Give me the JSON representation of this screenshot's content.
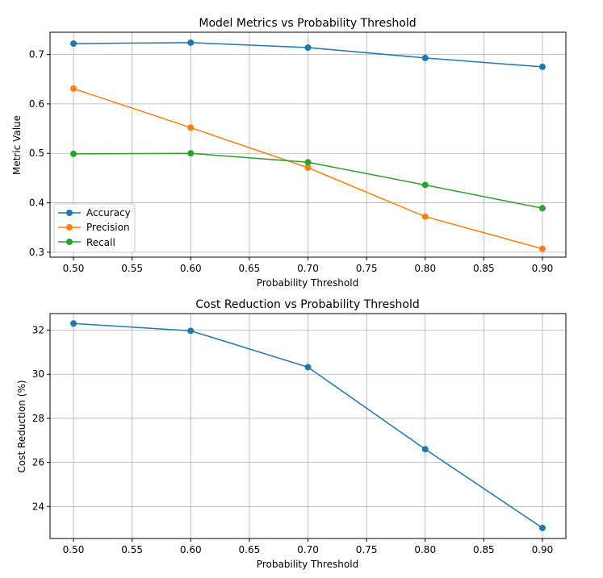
{
  "chart_data": [
    {
      "type": "line",
      "title": "Model Metrics vs Probability Threshold",
      "xlabel": "Probability Threshold",
      "ylabel": "Metric Value",
      "x": [
        0.5,
        0.6,
        0.7,
        0.8,
        0.9
      ],
      "xlim": [
        0.48,
        0.92
      ],
      "ylim": [
        0.29,
        0.745
      ],
      "xticks": [
        0.5,
        0.55,
        0.6,
        0.65,
        0.7,
        0.75,
        0.8,
        0.85,
        0.9
      ],
      "xtick_labels": [
        "0.50",
        "0.55",
        "0.60",
        "0.65",
        "0.70",
        "0.75",
        "0.80",
        "0.85",
        "0.90"
      ],
      "yticks": [
        0.3,
        0.4,
        0.5,
        0.6,
        0.7
      ],
      "ytick_labels": [
        "0.3",
        "0.4",
        "0.5",
        "0.6",
        "0.7"
      ],
      "grid": true,
      "legend": "lower-left",
      "series": [
        {
          "name": "Accuracy",
          "values": [
            0.722,
            0.724,
            0.714,
            0.693,
            0.675
          ],
          "color": "#1f77b4"
        },
        {
          "name": "Precision",
          "values": [
            0.631,
            0.552,
            0.471,
            0.372,
            0.307
          ],
          "color": "#ff7f0e"
        },
        {
          "name": "Recall",
          "values": [
            0.499,
            0.5,
            0.482,
            0.436,
            0.389
          ],
          "color": "#2ca02c"
        }
      ]
    },
    {
      "type": "line",
      "title": "Cost Reduction vs Probability Threshold",
      "xlabel": "Probability Threshold",
      "ylabel": "Cost Reduction (%)",
      "x": [
        0.5,
        0.6,
        0.7,
        0.8,
        0.9
      ],
      "xlim": [
        0.48,
        0.92
      ],
      "ylim": [
        22.55,
        32.75
      ],
      "xticks": [
        0.5,
        0.55,
        0.6,
        0.65,
        0.7,
        0.75,
        0.8,
        0.85,
        0.9
      ],
      "xtick_labels": [
        "0.50",
        "0.55",
        "0.60",
        "0.65",
        "0.70",
        "0.75",
        "0.80",
        "0.85",
        "0.90"
      ],
      "yticks": [
        24,
        26,
        28,
        30,
        32
      ],
      "ytick_labels": [
        "24",
        "26",
        "28",
        "30",
        "32"
      ],
      "grid": true,
      "legend": "none",
      "series": [
        {
          "name": "Cost Reduction",
          "values": [
            32.3,
            31.97,
            30.32,
            26.6,
            23.03
          ],
          "color": "#1f77b4"
        }
      ]
    }
  ]
}
